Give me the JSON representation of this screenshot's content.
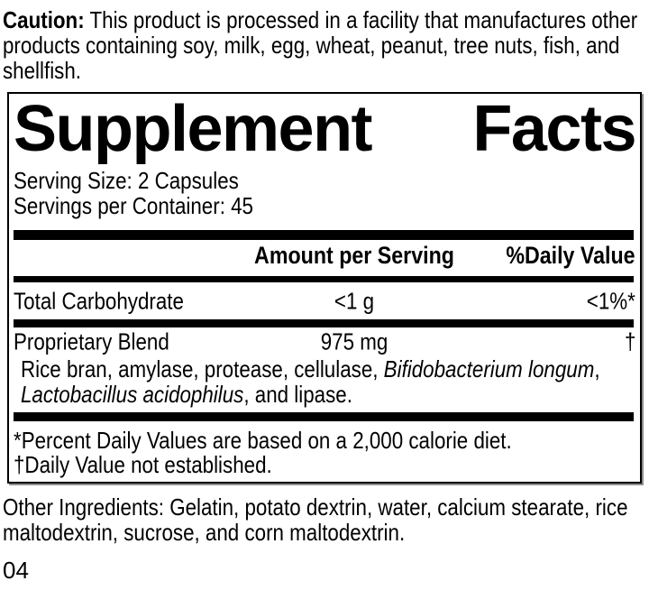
{
  "caution": {
    "label": "Caution:",
    "text": " This product is processed in a facility that manufactures other products containing soy, milk, egg, wheat, peanut, tree nuts, fish, and shellfish."
  },
  "panel": {
    "title": {
      "word1": "Supplement",
      "word2": "Facts"
    },
    "serving_size": "Serving Size: 2 Capsules",
    "servings_per_container": "Servings per Container: 45",
    "columns": {
      "amount": "Amount per Serving",
      "daily_value": "%Daily Value"
    },
    "rows": [
      {
        "name": "Total Carbohydrate",
        "amount": "<1 g",
        "dv": "<1%*"
      },
      {
        "name": "Proprietary Blend",
        "amount": "975 mg",
        "dv": "†"
      }
    ],
    "blend_description": {
      "segments": [
        {
          "text": "Rice bran, amylase, protease, cellulase, ",
          "italic": false
        },
        {
          "text": "Bifidobacterium longum",
          "italic": true
        },
        {
          "text": ", ",
          "italic": false
        },
        {
          "text": "Lactobacillus acidophilus",
          "italic": true
        },
        {
          "text": ", and lipase.",
          "italic": false
        }
      ]
    },
    "footnotes": [
      "*Percent Daily Values are based on a 2,000 calorie diet.",
      "†Daily Value not established."
    ]
  },
  "other_ingredients": "Other Ingredients: Gelatin, potato dextrin, water, calcium stearate, rice maltodextrin, sucrose, and corn maltodextrin.",
  "page_number": "04",
  "colors": {
    "text": "#000000",
    "background": "#ffffff",
    "rule": "#000000"
  }
}
